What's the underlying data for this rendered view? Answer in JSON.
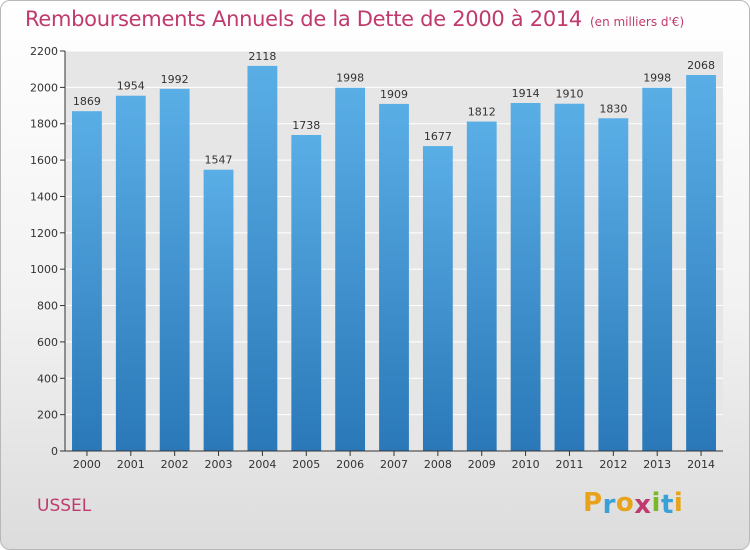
{
  "header": {
    "title": "Remboursements Annuels de la Dette de 2000 à 2014",
    "unit": "(en milliers d'€)"
  },
  "footer": {
    "commune": "USSEL",
    "brand": "Proxiti",
    "brand_letters": [
      {
        "char": "P",
        "color": "#e8a31a"
      },
      {
        "char": "r",
        "color": "#3aa0d8"
      },
      {
        "char": "o",
        "color": "#e8a31a"
      },
      {
        "char": "x",
        "color": "#c03a6e"
      },
      {
        "char": "i",
        "color": "#7ab829"
      },
      {
        "char": "t",
        "color": "#3aa0d8"
      },
      {
        "char": "i",
        "color": "#e8a31a"
      }
    ]
  },
  "chart_data": {
    "type": "bar",
    "title": "Remboursements Annuels de la Dette de 2000 à 2014",
    "categories": [
      "2000",
      "2001",
      "2002",
      "2003",
      "2004",
      "2005",
      "2006",
      "2007",
      "2008",
      "2009",
      "2010",
      "2011",
      "2012",
      "2013",
      "2014"
    ],
    "values": [
      1869,
      1954,
      1992,
      1547,
      2118,
      1738,
      1998,
      1909,
      1677,
      1812,
      1914,
      1910,
      1830,
      1998,
      2068
    ],
    "xlabel": "",
    "ylabel": "",
    "ylim": [
      0,
      2200
    ],
    "yticks": [
      0,
      200,
      400,
      600,
      800,
      1000,
      1200,
      1400,
      1600,
      1800,
      2000,
      2200
    ],
    "grid": true,
    "data_labels": true,
    "colors": {
      "bar_top": "#5aaee6",
      "bar_bottom": "#2a78b8",
      "grid": "#ffffff",
      "axis": "#333333"
    }
  }
}
